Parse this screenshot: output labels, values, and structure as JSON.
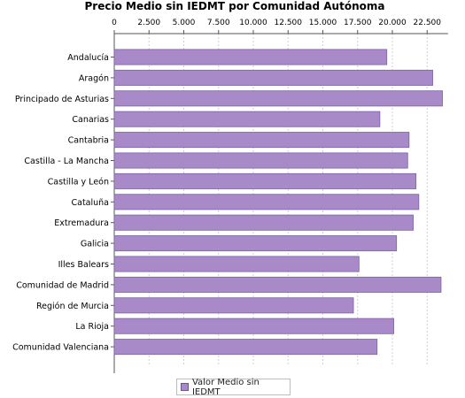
{
  "chart_data": {
    "type": "bar",
    "orientation": "horizontal",
    "title": "Precio Medio sin IEDMT por Comunidad Autónoma",
    "categories": [
      "Andalucía",
      "Aragón",
      "Principado de Asturias",
      "Canarias",
      "Cantabria",
      "Castilla - La Mancha",
      "Castilla y León",
      "Cataluña",
      "Extremadura",
      "Galicia",
      "Illes Balears",
      "Comunidad de Madrid",
      "Región de Murcia",
      "La Rioja",
      "Comunidad Valenciana"
    ],
    "series": [
      {
        "name": "Valor Medio sin IEDMT",
        "color": "#a98ac9",
        "values": [
          19600,
          22900,
          23600,
          19100,
          21200,
          21100,
          21700,
          21900,
          21500,
          20300,
          17600,
          23500,
          17200,
          20100,
          18900
        ]
      }
    ],
    "x_ticks": [
      "0",
      "2.500",
      "5.000",
      "7.500",
      "10.000",
      "12.500",
      "15.000",
      "17.500",
      "20.000",
      "22.500"
    ],
    "x_tick_values": [
      0,
      2500,
      5000,
      7500,
      10000,
      12500,
      15000,
      17500,
      20000,
      22500
    ],
    "xlim": [
      0,
      24000
    ],
    "xlabel": "",
    "ylabel": "",
    "grid": true,
    "legend_position": "bottom-center"
  }
}
